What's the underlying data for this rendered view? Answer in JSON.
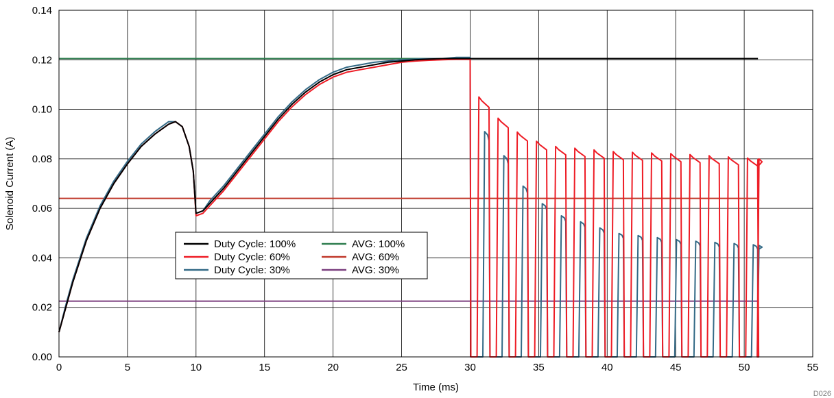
{
  "chart_data": {
    "type": "line",
    "xlabel": "Time (ms)",
    "ylabel": "Solenoid Current (A)",
    "xlim": [
      0,
      55
    ],
    "ylim": [
      0,
      0.14
    ],
    "x_ticks": [
      "0",
      "5",
      "10",
      "15",
      "20",
      "25",
      "30",
      "35",
      "40",
      "45",
      "50",
      "55"
    ],
    "y_ticks": [
      "0.00",
      "0.02",
      "0.04",
      "0.06",
      "0.08",
      "0.10",
      "0.12",
      "0.14"
    ],
    "grid": true,
    "legend_position": "center-left",
    "footnote": "D026",
    "colors": {
      "duty100": "#000000",
      "duty60": "#ee1c25",
      "duty30": "#336a86",
      "avg100": "#2e7d4f",
      "avg60": "#c0392b",
      "avg30": "#7b3f7f"
    },
    "series": [
      {
        "name": "Duty Cycle: 100%",
        "color": "#000000",
        "ramp": [
          [
            0,
            0.01
          ],
          [
            0.5,
            0.02
          ],
          [
            1,
            0.03
          ],
          [
            2,
            0.047
          ],
          [
            3,
            0.06
          ],
          [
            4,
            0.07
          ],
          [
            5,
            0.078
          ],
          [
            6,
            0.085
          ],
          [
            7,
            0.09
          ],
          [
            8,
            0.094
          ],
          [
            8.5,
            0.095
          ],
          [
            9,
            0.093
          ],
          [
            9.5,
            0.085
          ],
          [
            9.8,
            0.075
          ],
          [
            10,
            0.058
          ],
          [
            10.5,
            0.059
          ],
          [
            11,
            0.062
          ],
          [
            12,
            0.068
          ],
          [
            13,
            0.075
          ],
          [
            14,
            0.082
          ],
          [
            15,
            0.089
          ],
          [
            16,
            0.096
          ],
          [
            17,
            0.102
          ],
          [
            18,
            0.107
          ],
          [
            19,
            0.111
          ],
          [
            20,
            0.114
          ],
          [
            21,
            0.116
          ],
          [
            22,
            0.117
          ],
          [
            23,
            0.118
          ],
          [
            24,
            0.119
          ],
          [
            25,
            0.1195
          ],
          [
            26,
            0.12
          ],
          [
            27,
            0.1203
          ],
          [
            28,
            0.1205
          ],
          [
            29,
            0.1205
          ],
          [
            30,
            0.1205
          ],
          [
            31,
            0.1205
          ],
          [
            32,
            0.1205
          ],
          [
            33,
            0.1205
          ],
          [
            34,
            0.1205
          ],
          [
            35,
            0.1205
          ],
          [
            36,
            0.1205
          ],
          [
            37,
            0.1205
          ],
          [
            38,
            0.1205
          ],
          [
            39,
            0.1205
          ],
          [
            40,
            0.1205
          ],
          [
            41,
            0.1205
          ],
          [
            42,
            0.1205
          ],
          [
            43,
            0.1205
          ],
          [
            44,
            0.1205
          ],
          [
            45,
            0.1205
          ],
          [
            46,
            0.1205
          ],
          [
            47,
            0.1205
          ],
          [
            48,
            0.1205
          ],
          [
            49,
            0.1205
          ],
          [
            50,
            0.1205
          ],
          [
            51,
            0.1205
          ]
        ]
      },
      {
        "name": "Duty Cycle: 60%",
        "color": "#ee1c25",
        "ramp": [
          [
            0,
            0.01
          ],
          [
            0.5,
            0.02
          ],
          [
            1,
            0.03
          ],
          [
            2,
            0.047
          ],
          [
            3,
            0.06
          ],
          [
            4,
            0.07
          ],
          [
            5,
            0.078
          ],
          [
            6,
            0.085
          ],
          [
            7,
            0.09
          ],
          [
            8,
            0.094
          ],
          [
            8.5,
            0.095
          ],
          [
            9,
            0.093
          ],
          [
            9.5,
            0.085
          ],
          [
            9.8,
            0.075
          ],
          [
            10,
            0.057
          ],
          [
            10.5,
            0.058
          ],
          [
            11,
            0.061
          ],
          [
            12,
            0.067
          ],
          [
            13,
            0.074
          ],
          [
            14,
            0.081
          ],
          [
            15,
            0.088
          ],
          [
            16,
            0.095
          ],
          [
            17,
            0.101
          ],
          [
            18,
            0.106
          ],
          [
            19,
            0.11
          ],
          [
            20,
            0.113
          ],
          [
            21,
            0.115
          ],
          [
            22,
            0.116
          ],
          [
            23,
            0.117
          ],
          [
            24,
            0.118
          ],
          [
            25,
            0.119
          ],
          [
            26,
            0.1195
          ],
          [
            27,
            0.1198
          ],
          [
            28,
            0.12
          ],
          [
            29,
            0.1202
          ],
          [
            30,
            0.1202
          ]
        ],
        "period_ms": 1.4,
        "pwm_start_ms": 30,
        "pwm_end_ms": 51,
        "peak_envelope": [
          [
            30.6,
            0.105
          ],
          [
            32,
            0.095
          ],
          [
            34,
            0.088
          ],
          [
            36,
            0.085
          ],
          [
            40,
            0.083
          ],
          [
            45,
            0.082
          ],
          [
            51,
            0.08
          ]
        ]
      },
      {
        "name": "Duty Cycle: 30%",
        "color": "#336a86",
        "ramp": [
          [
            0,
            0.01
          ],
          [
            0.5,
            0.021
          ],
          [
            1,
            0.031
          ],
          [
            2,
            0.048
          ],
          [
            3,
            0.061
          ],
          [
            4,
            0.071
          ],
          [
            5,
            0.079
          ],
          [
            6,
            0.086
          ],
          [
            7,
            0.091
          ],
          [
            8,
            0.095
          ],
          [
            8.5,
            0.095
          ],
          [
            9,
            0.093
          ],
          [
            9.5,
            0.085
          ],
          [
            9.8,
            0.075
          ],
          [
            10,
            0.058
          ],
          [
            10.5,
            0.059
          ],
          [
            11,
            0.063
          ],
          [
            12,
            0.069
          ],
          [
            13,
            0.076
          ],
          [
            14,
            0.083
          ],
          [
            15,
            0.09
          ],
          [
            16,
            0.097
          ],
          [
            17,
            0.103
          ],
          [
            18,
            0.108
          ],
          [
            19,
            0.112
          ],
          [
            20,
            0.115
          ],
          [
            21,
            0.117
          ],
          [
            22,
            0.118
          ],
          [
            23,
            0.119
          ],
          [
            24,
            0.1195
          ],
          [
            25,
            0.12
          ],
          [
            26,
            0.1203
          ],
          [
            27,
            0.1205
          ],
          [
            28,
            0.1205
          ],
          [
            29,
            0.121
          ],
          [
            30,
            0.121
          ]
        ],
        "period_ms": 1.4,
        "pwm_start_ms": 30,
        "pwm_end_ms": 51,
        "peak_envelope": [
          [
            31,
            0.091
          ],
          [
            32.4,
            0.074
          ],
          [
            34,
            0.064
          ],
          [
            36,
            0.057
          ],
          [
            40,
            0.05
          ],
          [
            45,
            0.047
          ],
          [
            51,
            0.045
          ]
        ]
      },
      {
        "name": "AVG: 100%",
        "color": "#2e7d4f",
        "x": [
          0,
          51
        ],
        "y": [
          0.1205,
          0.1205
        ]
      },
      {
        "name": "AVG: 60%",
        "color": "#c0392b",
        "x": [
          0,
          51
        ],
        "y": [
          0.064,
          0.064
        ]
      },
      {
        "name": "AVG: 30%",
        "color": "#7b3f7f",
        "x": [
          0,
          51
        ],
        "y": [
          0.0225,
          0.0225
        ]
      }
    ]
  },
  "legend": {
    "items": [
      {
        "label": "Duty Cycle: 100%",
        "color": "#000000"
      },
      {
        "label": "AVG: 100%",
        "color": "#2e7d4f"
      },
      {
        "label": "Duty Cycle: 60%",
        "color": "#ee1c25"
      },
      {
        "label": "AVG: 60%",
        "color": "#c0392b"
      },
      {
        "label": "Duty Cycle: 30%",
        "color": "#336a86"
      },
      {
        "label": "AVG: 30%",
        "color": "#7b3f7f"
      }
    ]
  }
}
